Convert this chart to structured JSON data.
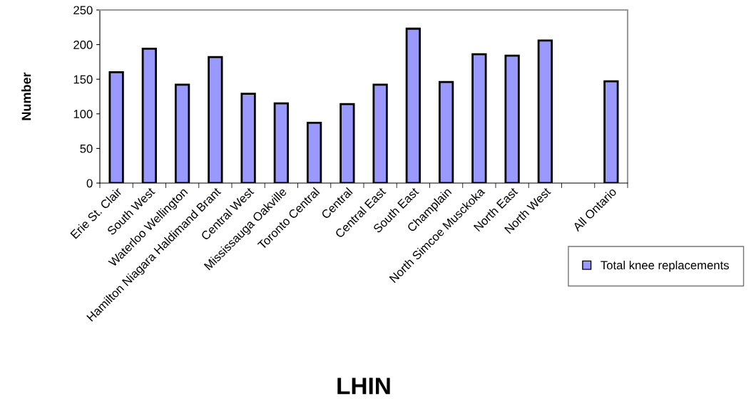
{
  "chart_data": {
    "type": "bar",
    "xlabel": "LHIN",
    "ylabel": "Number",
    "categories": [
      "Erie St. Clair",
      "South West",
      "Waterloo Wellington",
      "Hamilton Niagara Haldimand Brant",
      "Central West",
      "Mississauga Oakville",
      "Toronto Central",
      "Central",
      "Central East",
      "South East",
      "Champlain",
      "North Simcoe Musckoka",
      "North East",
      "North West",
      null,
      "All Ontario"
    ],
    "series": [
      {
        "name": "Total knee replacements",
        "color": "#9999ff",
        "values": [
          160,
          194,
          142,
          182,
          129,
          115,
          87,
          114,
          142,
          223,
          146,
          186,
          184,
          206,
          null,
          147
        ]
      }
    ],
    "ylim": [
      0,
      250
    ],
    "yticks": [
      0,
      50,
      100,
      150,
      200,
      250
    ],
    "grid": false,
    "legend": "right"
  }
}
